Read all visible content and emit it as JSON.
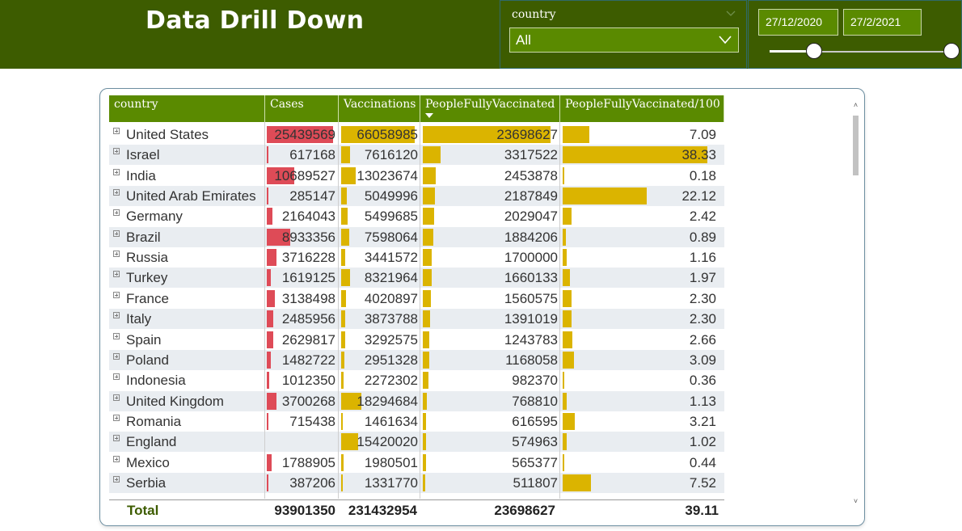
{
  "header": {
    "title": "Data Drill Down"
  },
  "slicer": {
    "label": "country",
    "value": "All"
  },
  "date_range": {
    "start": "27/12/2020",
    "end": "27/2/2021"
  },
  "table": {
    "columns": [
      "country",
      "Cases",
      "Vaccinations",
      "PeopleFullyVaccinated",
      "PeopleFullyVaccinated/100"
    ],
    "sorted_column": "PeopleFullyVaccinated",
    "rows": [
      {
        "country": "United States",
        "cases": "25439569",
        "vacc": "66058985",
        "pfv": "23698627",
        "pfv100": "7.09"
      },
      {
        "country": "Israel",
        "cases": "617168",
        "vacc": "7616120",
        "pfv": "3317522",
        "pfv100": "38.33"
      },
      {
        "country": "India",
        "cases": "10689527",
        "vacc": "13023674",
        "pfv": "2453878",
        "pfv100": "0.18"
      },
      {
        "country": "United Arab Emirates",
        "cases": "285147",
        "vacc": "5049996",
        "pfv": "2187849",
        "pfv100": "22.12"
      },
      {
        "country": "Germany",
        "cases": "2164043",
        "vacc": "5499685",
        "pfv": "2029047",
        "pfv100": "2.42"
      },
      {
        "country": "Brazil",
        "cases": "8933356",
        "vacc": "7598064",
        "pfv": "1884206",
        "pfv100": "0.89"
      },
      {
        "country": "Russia",
        "cases": "3716228",
        "vacc": "3441572",
        "pfv": "1700000",
        "pfv100": "1.16"
      },
      {
        "country": "Turkey",
        "cases": "1619125",
        "vacc": "8321964",
        "pfv": "1660133",
        "pfv100": "1.97"
      },
      {
        "country": "France",
        "cases": "3138498",
        "vacc": "4020897",
        "pfv": "1560575",
        "pfv100": "2.30"
      },
      {
        "country": "Italy",
        "cases": "2485956",
        "vacc": "3873788",
        "pfv": "1391019",
        "pfv100": "2.30"
      },
      {
        "country": "Spain",
        "cases": "2629817",
        "vacc": "3292575",
        "pfv": "1243783",
        "pfv100": "2.66"
      },
      {
        "country": "Poland",
        "cases": "1482722",
        "vacc": "2951328",
        "pfv": "1168058",
        "pfv100": "3.09"
      },
      {
        "country": "Indonesia",
        "cases": "1012350",
        "vacc": "2272302",
        "pfv": "982370",
        "pfv100": "0.36"
      },
      {
        "country": "United Kingdom",
        "cases": "3700268",
        "vacc": "18294684",
        "pfv": "768810",
        "pfv100": "1.13"
      },
      {
        "country": "Romania",
        "cases": "715438",
        "vacc": "1461634",
        "pfv": "616595",
        "pfv100": "3.21"
      },
      {
        "country": "England",
        "cases": "",
        "vacc": "15420020",
        "pfv": "574963",
        "pfv100": "1.02"
      },
      {
        "country": "Mexico",
        "cases": "1788905",
        "vacc": "1980501",
        "pfv": "565377",
        "pfv100": "0.44"
      },
      {
        "country": "Serbia",
        "cases": "387206",
        "vacc": "1331770",
        "pfv": "511807",
        "pfv100": "7.52"
      }
    ],
    "total": {
      "label": "Total",
      "cases": "93901350",
      "vacc": "231432954",
      "pfv": "23698627",
      "pfv100": "39.11"
    },
    "colors": {
      "cases_bar": "#de4b57",
      "other_bar": "#dbb400",
      "header_bg": "#5a8a00",
      "alt_row": "#e9edf1"
    }
  }
}
